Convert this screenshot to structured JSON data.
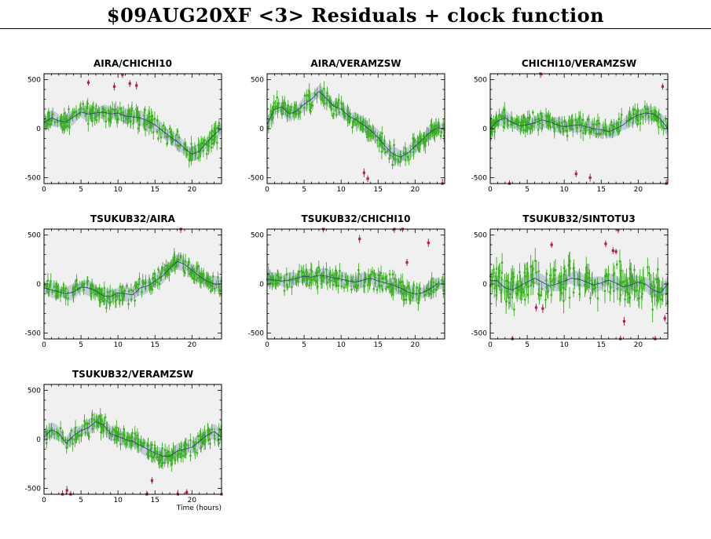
{
  "title": "$09AUG20XF <3> Residuals + clock function",
  "colors": {
    "background": "#ffffff",
    "plot_bg": "#f0f0f0",
    "good_points": "#3ab020",
    "flagged_points": "#b0204a",
    "clock_band": "#bcc4dc",
    "clock_line": "#2a3a7a"
  },
  "chart_data": [
    {
      "type": "scatter",
      "title": "AIRA/CHICHI10",
      "xlim": [
        0,
        24
      ],
      "ylim": [
        -560,
        560
      ],
      "xticks": [
        0,
        5,
        10,
        15,
        20
      ],
      "yticks": [
        -500,
        0,
        500
      ],
      "xlabel": "",
      "clock": {
        "x": [
          0,
          1,
          2,
          3,
          4,
          5,
          6,
          7,
          8,
          9,
          10,
          11,
          12,
          13,
          14,
          15,
          16,
          17,
          18,
          19,
          20,
          21,
          22,
          23,
          24
        ],
        "y": [
          60,
          110,
          80,
          70,
          120,
          170,
          150,
          160,
          170,
          150,
          160,
          130,
          120,
          110,
          80,
          40,
          -20,
          -80,
          -130,
          -200,
          -260,
          -230,
          -140,
          -60,
          0
        ]
      },
      "flagged": [
        [
          6,
          470
        ],
        [
          9.5,
          430
        ],
        [
          10.6,
          550
        ],
        [
          11.6,
          460
        ],
        [
          12.5,
          440
        ]
      ]
    },
    {
      "type": "scatter",
      "title": "AIRA/VERAMZSW",
      "xlim": [
        0,
        24
      ],
      "ylim": [
        -560,
        560
      ],
      "xticks": [
        0,
        5,
        10,
        15,
        20
      ],
      "yticks": [
        -500,
        0,
        500
      ],
      "xlabel": "",
      "clock": {
        "x": [
          0,
          1,
          2,
          3,
          4,
          5,
          6,
          7,
          8,
          9,
          10,
          11,
          12,
          13,
          14,
          15,
          16,
          17,
          18,
          19,
          20,
          21,
          22,
          23,
          24
        ],
        "y": [
          40,
          200,
          220,
          150,
          180,
          250,
          300,
          380,
          310,
          230,
          200,
          130,
          90,
          40,
          -20,
          -90,
          -180,
          -260,
          -290,
          -250,
          -180,
          -110,
          -40,
          10,
          0
        ]
      },
      "flagged": [
        [
          13.1,
          -450
        ],
        [
          13.6,
          -510
        ],
        [
          23.7,
          -560
        ]
      ]
    },
    {
      "type": "scatter",
      "title": "CHICHI10/VERAMZSW",
      "xlim": [
        0,
        24
      ],
      "ylim": [
        -560,
        560
      ],
      "xticks": [
        0,
        5,
        10,
        15,
        20
      ],
      "yticks": [
        -500,
        0,
        500
      ],
      "xlabel": "",
      "clock": {
        "x": [
          0,
          1,
          2,
          3,
          4,
          5,
          6,
          7,
          8,
          9,
          10,
          11,
          12,
          13,
          14,
          15,
          16,
          17,
          18,
          19,
          20,
          21,
          22,
          23,
          24
        ],
        "y": [
          0,
          80,
          110,
          60,
          30,
          40,
          60,
          90,
          70,
          40,
          20,
          30,
          40,
          20,
          0,
          -10,
          -30,
          0,
          40,
          100,
          140,
          160,
          150,
          100,
          0
        ]
      },
      "flagged": [
        [
          2.6,
          -560
        ],
        [
          6.8,
          560
        ],
        [
          11.6,
          -460
        ],
        [
          13.5,
          -500
        ],
        [
          23.3,
          430
        ],
        [
          23.8,
          -560
        ]
      ]
    },
    {
      "type": "scatter",
      "title": "TSUKUB32/AIRA",
      "xlim": [
        0,
        24
      ],
      "ylim": [
        -560,
        560
      ],
      "xticks": [
        0,
        5,
        10,
        15,
        20
      ],
      "yticks": [
        -500,
        0,
        500
      ],
      "xlabel": "",
      "clock": {
        "x": [
          0,
          1,
          2,
          3,
          4,
          5,
          6,
          7,
          8,
          9,
          10,
          11,
          12,
          13,
          14,
          15,
          16,
          17,
          18,
          19,
          20,
          21,
          22,
          23,
          24
        ],
        "y": [
          -40,
          -60,
          -80,
          -100,
          -80,
          -30,
          -40,
          -70,
          -120,
          -130,
          -90,
          -100,
          -110,
          -40,
          -20,
          30,
          80,
          160,
          230,
          200,
          140,
          80,
          30,
          0,
          0
        ]
      },
      "flagged": [
        [
          18.5,
          560
        ]
      ]
    },
    {
      "type": "scatter",
      "title": "TSUKUB32/CHICHI10",
      "xlim": [
        0,
        24
      ],
      "ylim": [
        -560,
        560
      ],
      "xticks": [
        0,
        5,
        10,
        15,
        20
      ],
      "yticks": [
        -500,
        0,
        500
      ],
      "xlabel": "",
      "clock": {
        "x": [
          0,
          1,
          2,
          3,
          4,
          5,
          6,
          7,
          8,
          9,
          10,
          11,
          12,
          13,
          14,
          15,
          16,
          17,
          18,
          19,
          20,
          21,
          22,
          23,
          24
        ],
        "y": [
          50,
          40,
          30,
          40,
          60,
          80,
          70,
          90,
          80,
          60,
          50,
          30,
          20,
          40,
          60,
          30,
          10,
          -10,
          -40,
          -80,
          -100,
          -90,
          -50,
          0,
          0
        ]
      },
      "flagged": [
        [
          7.6,
          560
        ],
        [
          12.5,
          460
        ],
        [
          17.2,
          560
        ],
        [
          18.3,
          560
        ],
        [
          18.9,
          220
        ],
        [
          21.8,
          420
        ]
      ]
    },
    {
      "type": "scatter",
      "title": "TSUKUB32/SINTOTU3",
      "xlim": [
        0,
        24
      ],
      "ylim": [
        -560,
        560
      ],
      "xticks": [
        0,
        5,
        10,
        15,
        20
      ],
      "yticks": [
        -500,
        0,
        500
      ],
      "xlabel": "",
      "clock": {
        "x": [
          0,
          1,
          2,
          3,
          4,
          5,
          6,
          7,
          8,
          9,
          10,
          11,
          12,
          13,
          14,
          15,
          16,
          17,
          18,
          19,
          20,
          21,
          22,
          23,
          24
        ],
        "y": [
          40,
          30,
          -40,
          -60,
          -20,
          20,
          60,
          20,
          -20,
          0,
          30,
          60,
          50,
          20,
          -10,
          10,
          40,
          10,
          -30,
          -10,
          20,
          0,
          -60,
          -90,
          0
        ]
      },
      "flagged": [
        [
          3,
          -560
        ],
        [
          6.2,
          -240
        ],
        [
          7.1,
          -250
        ],
        [
          8.3,
          400
        ],
        [
          15.6,
          410
        ],
        [
          16.6,
          340
        ],
        [
          17,
          330
        ],
        [
          17.3,
          550
        ],
        [
          17.6,
          -560
        ],
        [
          18.1,
          -380
        ],
        [
          22.3,
          -560
        ],
        [
          23.6,
          -350
        ]
      ]
    },
    {
      "type": "scatter",
      "title": "TSUKUB32/VERAMZSW",
      "xlim": [
        0,
        24
      ],
      "ylim": [
        -560,
        560
      ],
      "xticks": [
        0,
        5,
        10,
        15,
        20
      ],
      "yticks": [
        -500,
        0,
        500
      ],
      "xlabel": "Time (hours)",
      "clock": {
        "x": [
          0,
          1,
          2,
          3,
          4,
          5,
          6,
          7,
          8,
          9,
          10,
          11,
          12,
          13,
          14,
          15,
          16,
          17,
          18,
          19,
          20,
          21,
          22,
          23,
          24
        ],
        "y": [
          20,
          100,
          60,
          -40,
          40,
          90,
          120,
          180,
          150,
          60,
          30,
          0,
          -20,
          -60,
          -100,
          -140,
          -170,
          -170,
          -120,
          -100,
          -80,
          -20,
          40,
          80,
          20
        ]
      },
      "flagged": [
        [
          2.5,
          -560
        ],
        [
          3.1,
          -520
        ],
        [
          3.6,
          -560
        ],
        [
          13.9,
          -560
        ],
        [
          14.6,
          -420
        ],
        [
          18.1,
          -560
        ],
        [
          19.3,
          -540
        ],
        [
          24,
          -560
        ]
      ]
    }
  ]
}
